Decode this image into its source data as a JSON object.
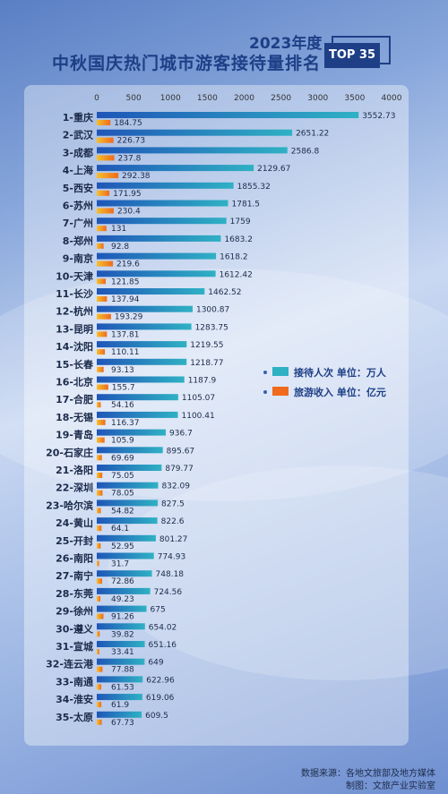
{
  "header": {
    "year_label": "2023年度",
    "title": "中秋国庆热门城市游客接待量排名",
    "badge": "TOP 35"
  },
  "legend": [
    {
      "label": "接待人次  单位：万人",
      "color": "#2fb1c4"
    },
    {
      "label": "旅游收入  单位：亿元",
      "color": "#f06a1d"
    }
  ],
  "footer": {
    "source": "数据来源：各地文旅部及地方媒体",
    "producer": "制图：文旅产业实验室"
  },
  "colors": {
    "visitors": "#2fb1c4",
    "revenue": "#f06a1d",
    "header_blue": "#1e3f86"
  },
  "chart_data": {
    "type": "bar",
    "orientation": "horizontal",
    "xlim": [
      0,
      4000
    ],
    "ticks": [
      0,
      500,
      1000,
      1500,
      2000,
      2500,
      3000,
      3500,
      4000
    ],
    "categories": [
      "1-重庆",
      "2-武汉",
      "3-成都",
      "4-上海",
      "5-西安",
      "6-苏州",
      "7-广州",
      "8-郑州",
      "9-南京",
      "10-天津",
      "11-长沙",
      "12-杭州",
      "13-昆明",
      "14-沈阳",
      "15-长春",
      "16-北京",
      "17-合肥",
      "18-无锡",
      "19-青岛",
      "20-石家庄",
      "21-洛阳",
      "22-深圳",
      "23-哈尔滨",
      "24-黄山",
      "25-开封",
      "26-南阳",
      "27-南宁",
      "28-东莞",
      "29-徐州",
      "30-遵义",
      "31-宣城",
      "32-连云港",
      "33-南通",
      "34-淮安",
      "35-太原"
    ],
    "series": [
      {
        "name": "接待人次  单位：万人",
        "values": [
          3552.73,
          2651.22,
          2586.8,
          2129.67,
          1855.32,
          1781.5,
          1759,
          1683.2,
          1618.2,
          1612.42,
          1462.52,
          1300.87,
          1283.75,
          1219.55,
          1218.77,
          1187.9,
          1105.07,
          1100.41,
          936.7,
          895.67,
          879.77,
          832.09,
          827.5,
          822.6,
          801.27,
          774.93,
          748.18,
          724.56,
          675,
          654.02,
          651.16,
          649,
          622.96,
          619.06,
          609.5
        ]
      },
      {
        "name": "旅游收入  单位：亿元",
        "values": [
          184.75,
          226.73,
          237.8,
          292.38,
          171.95,
          230.4,
          131,
          92.8,
          219.6,
          121.85,
          137.94,
          193.29,
          137.81,
          110.11,
          93.13,
          155.7,
          54.16,
          116.37,
          105.9,
          69.69,
          75.05,
          78.05,
          54.82,
          64.1,
          52.95,
          31.7,
          72.86,
          49.23,
          91.26,
          39.82,
          33.41,
          77.88,
          61.53,
          61.9,
          67.73
        ]
      }
    ]
  }
}
